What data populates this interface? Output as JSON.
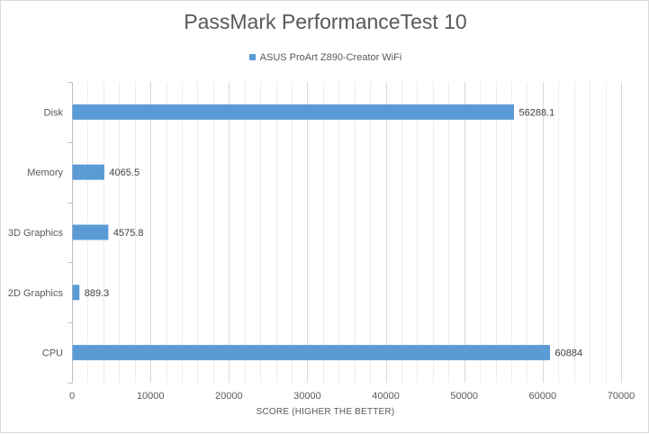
{
  "chart_data": {
    "type": "bar",
    "orientation": "horizontal",
    "title": "PassMark PerformanceTest 10",
    "xlabel": "SCORE (HIGHER THE BETTER)",
    "ylabel": "",
    "categories": [
      "Disk",
      "Memory",
      "3D Graphics",
      "2D Graphics",
      "CPU"
    ],
    "series": [
      {
        "name": "ASUS ProArt Z890-Creator WiFi",
        "values": [
          56288.1,
          4065.5,
          4575.8,
          889.3,
          60884
        ],
        "value_labels": [
          "56288.1",
          "4065.5",
          "4575.8",
          "889.3",
          "60884"
        ],
        "color": "#5b9bd5"
      }
    ],
    "xlim": [
      0,
      70000
    ],
    "major_ticks": [
      0,
      10000,
      20000,
      30000,
      40000,
      50000,
      60000,
      70000
    ],
    "minor_tick_step": 2000,
    "grid": true,
    "legend_position": "top"
  }
}
